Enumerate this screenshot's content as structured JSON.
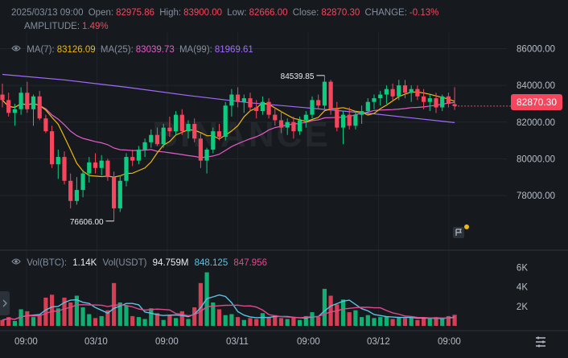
{
  "header": {
    "datetime": "2025/03/13 09:00",
    "open_label": "Open:",
    "open": "82975.86",
    "high_label": "High:",
    "high": "83900.00",
    "low_label": "Low:",
    "low": "82666.00",
    "close_label": "Close:",
    "close": "82870.30",
    "change_label": "CHANGE:",
    "change": "-0.13%",
    "amplitude_label": "AMPLITUDE:",
    "amplitude": "1.49%"
  },
  "ma": {
    "ma7_label": "MA(7):",
    "ma7": "83126.09",
    "ma25_label": "MA(25):",
    "ma25": "83039.73",
    "ma99_label": "MA(99):",
    "ma99": "81969.61"
  },
  "volume": {
    "label": "Vol(BTC):",
    "btc": "1.14K",
    "usdt_label": "Vol(USDT)",
    "usdt": "94.759M",
    "ma1": "848.125",
    "ma2": "847.956"
  },
  "current_price": "82870.30",
  "annotations": {
    "high_marker": "84539.85",
    "low_marker": "76606.00"
  },
  "watermark": "BINANCE",
  "time_labels": [
    "09:00",
    "03/10",
    "09:00",
    "03/11",
    "09:00",
    "03/12",
    "09:00"
  ],
  "colors": {
    "background": "#161a1e",
    "up": "#0ecb81",
    "down": "#f6465d",
    "ma7": "#f0b90b",
    "ma25": "#e45cc9",
    "ma99": "#a36bff",
    "vol_ma1": "#5bc2e7",
    "vol_ma2": "#e04a8c"
  },
  "icons": {
    "visibility": "eye-icon",
    "expand": "chevron-right-icon",
    "settings": "settings-sliders-icon",
    "flag": "flag-icon"
  },
  "chart_data": {
    "type": "candlestick",
    "interval_hours": 2,
    "price_axis": {
      "ticks": [
        78000,
        80000,
        82000,
        84000,
        86000
      ],
      "ylim": [
        75500,
        86900
      ]
    },
    "volume_axis": {
      "ticks": [
        "2K",
        "4K",
        "6K"
      ],
      "tick_values": [
        2000,
        4000,
        6000
      ],
      "ylim": [
        0,
        7200
      ]
    },
    "ohlc": [
      [
        83500,
        84100,
        82800,
        83200
      ],
      [
        83200,
        83600,
        82300,
        82500
      ],
      [
        82500,
        83000,
        81800,
        82700
      ],
      [
        82700,
        83900,
        82400,
        83600
      ],
      [
        83600,
        84200,
        82500,
        82700
      ],
      [
        82700,
        83500,
        81800,
        83400
      ],
      [
        83400,
        83700,
        82100,
        82200
      ],
      [
        82200,
        82400,
        81400,
        81500
      ],
      [
        81500,
        81800,
        79500,
        79700
      ],
      [
        79700,
        80500,
        78900,
        80100
      ],
      [
        80100,
        80400,
        78600,
        78800
      ],
      [
        78800,
        79200,
        77300,
        77700
      ],
      [
        77700,
        79000,
        77500,
        78300
      ],
      [
        78300,
        79400,
        77900,
        79200
      ],
      [
        79200,
        80100,
        78700,
        79800
      ],
      [
        79800,
        80300,
        79200,
        79500
      ],
      [
        79500,
        80200,
        79100,
        79900
      ],
      [
        79900,
        80000,
        78800,
        79000
      ],
      [
        79000,
        79300,
        76606,
        77300
      ],
      [
        77300,
        79100,
        77100,
        78800
      ],
      [
        78800,
        80300,
        78500,
        80100
      ],
      [
        80100,
        80500,
        79600,
        79900
      ],
      [
        79900,
        80700,
        79700,
        80500
      ],
      [
        80500,
        81100,
        80100,
        80900
      ],
      [
        80900,
        81600,
        80600,
        81300
      ],
      [
        81300,
        81700,
        80700,
        80800
      ],
      [
        80800,
        81900,
        80600,
        81700
      ],
      [
        81700,
        82300,
        81200,
        81500
      ],
      [
        81500,
        82600,
        81300,
        82400
      ],
      [
        82400,
        82700,
        81300,
        81500
      ],
      [
        81500,
        82100,
        81100,
        81900
      ],
      [
        81900,
        82200,
        80900,
        81100
      ],
      [
        81100,
        81400,
        79500,
        79900
      ],
      [
        79900,
        80600,
        79200,
        80500
      ],
      [
        80500,
        81700,
        80300,
        81500
      ],
      [
        81500,
        81900,
        81000,
        81200
      ],
      [
        81200,
        83100,
        81000,
        82900
      ],
      [
        82900,
        83800,
        82300,
        83500
      ],
      [
        83500,
        83900,
        82800,
        83100
      ],
      [
        83100,
        83500,
        82500,
        83300
      ],
      [
        83300,
        83600,
        82600,
        82800
      ],
      [
        82800,
        83200,
        82200,
        82600
      ],
      [
        82600,
        83400,
        82400,
        83100
      ],
      [
        83100,
        83300,
        82200,
        82400
      ],
      [
        82400,
        82800,
        81800,
        82100
      ],
      [
        82100,
        82600,
        81400,
        81700
      ],
      [
        81700,
        82200,
        81300,
        82000
      ],
      [
        82000,
        82300,
        81100,
        81500
      ],
      [
        81500,
        82300,
        81300,
        82100
      ],
      [
        82100,
        82600,
        81700,
        82400
      ],
      [
        82400,
        83400,
        82200,
        83200
      ],
      [
        83200,
        83500,
        82700,
        82900
      ],
      [
        82900,
        84539.85,
        82700,
        84200
      ],
      [
        84200,
        84300,
        82400,
        82700
      ],
      [
        82700,
        83100,
        81500,
        81700
      ],
      [
        81700,
        82600,
        80800,
        82400
      ],
      [
        82400,
        82800,
        81600,
        81800
      ],
      [
        81800,
        82600,
        81600,
        82400
      ],
      [
        82400,
        82900,
        81900,
        82600
      ],
      [
        82600,
        83300,
        82400,
        83100
      ],
      [
        83100,
        83500,
        82700,
        83300
      ],
      [
        83300,
        83700,
        82900,
        83500
      ],
      [
        83500,
        84000,
        83000,
        83800
      ],
      [
        83800,
        84100,
        83200,
        83400
      ],
      [
        83400,
        84300,
        83200,
        84000
      ],
      [
        84000,
        84300,
        83300,
        83600
      ],
      [
        83600,
        84000,
        83100,
        83800
      ],
      [
        83800,
        84000,
        83200,
        83400
      ],
      [
        83400,
        83800,
        82700,
        83100
      ],
      [
        83100,
        83500,
        82600,
        83300
      ],
      [
        83300,
        83600,
        82500,
        82800
      ],
      [
        82800,
        83500,
        82600,
        83400
      ],
      [
        83400,
        83600,
        82800,
        83000
      ],
      [
        82975.86,
        83900,
        82666,
        82870.3
      ]
    ],
    "volume": [
      600,
      900,
      500,
      1700,
      1500,
      900,
      1200,
      2900,
      3200,
      1800,
      2900,
      2400,
      3100,
      1900,
      1200,
      800,
      1000,
      1600,
      4400,
      2400,
      2100,
      1000,
      900,
      700,
      1800,
      1300,
      600,
      1100,
      800,
      1500,
      700,
      1900,
      4400,
      5500,
      2400,
      1700,
      1100,
      1200,
      900,
      600,
      800,
      700,
      1300,
      900,
      1100,
      800,
      700,
      900,
      600,
      1000,
      1400,
      900,
      3800,
      3100,
      2200,
      2700,
      1400,
      1600,
      900,
      1100,
      800,
      900,
      1000,
      700,
      900,
      800,
      900,
      600,
      800,
      700,
      900,
      700,
      1000,
      1140
    ],
    "ma99": [
      [
        0,
        84600
      ],
      [
        10,
        84300
      ],
      [
        20,
        83900
      ],
      [
        30,
        83450
      ],
      [
        40,
        83050
      ],
      [
        50,
        82750
      ],
      [
        60,
        82450
      ],
      [
        73,
        81969.61
      ]
    ]
  }
}
